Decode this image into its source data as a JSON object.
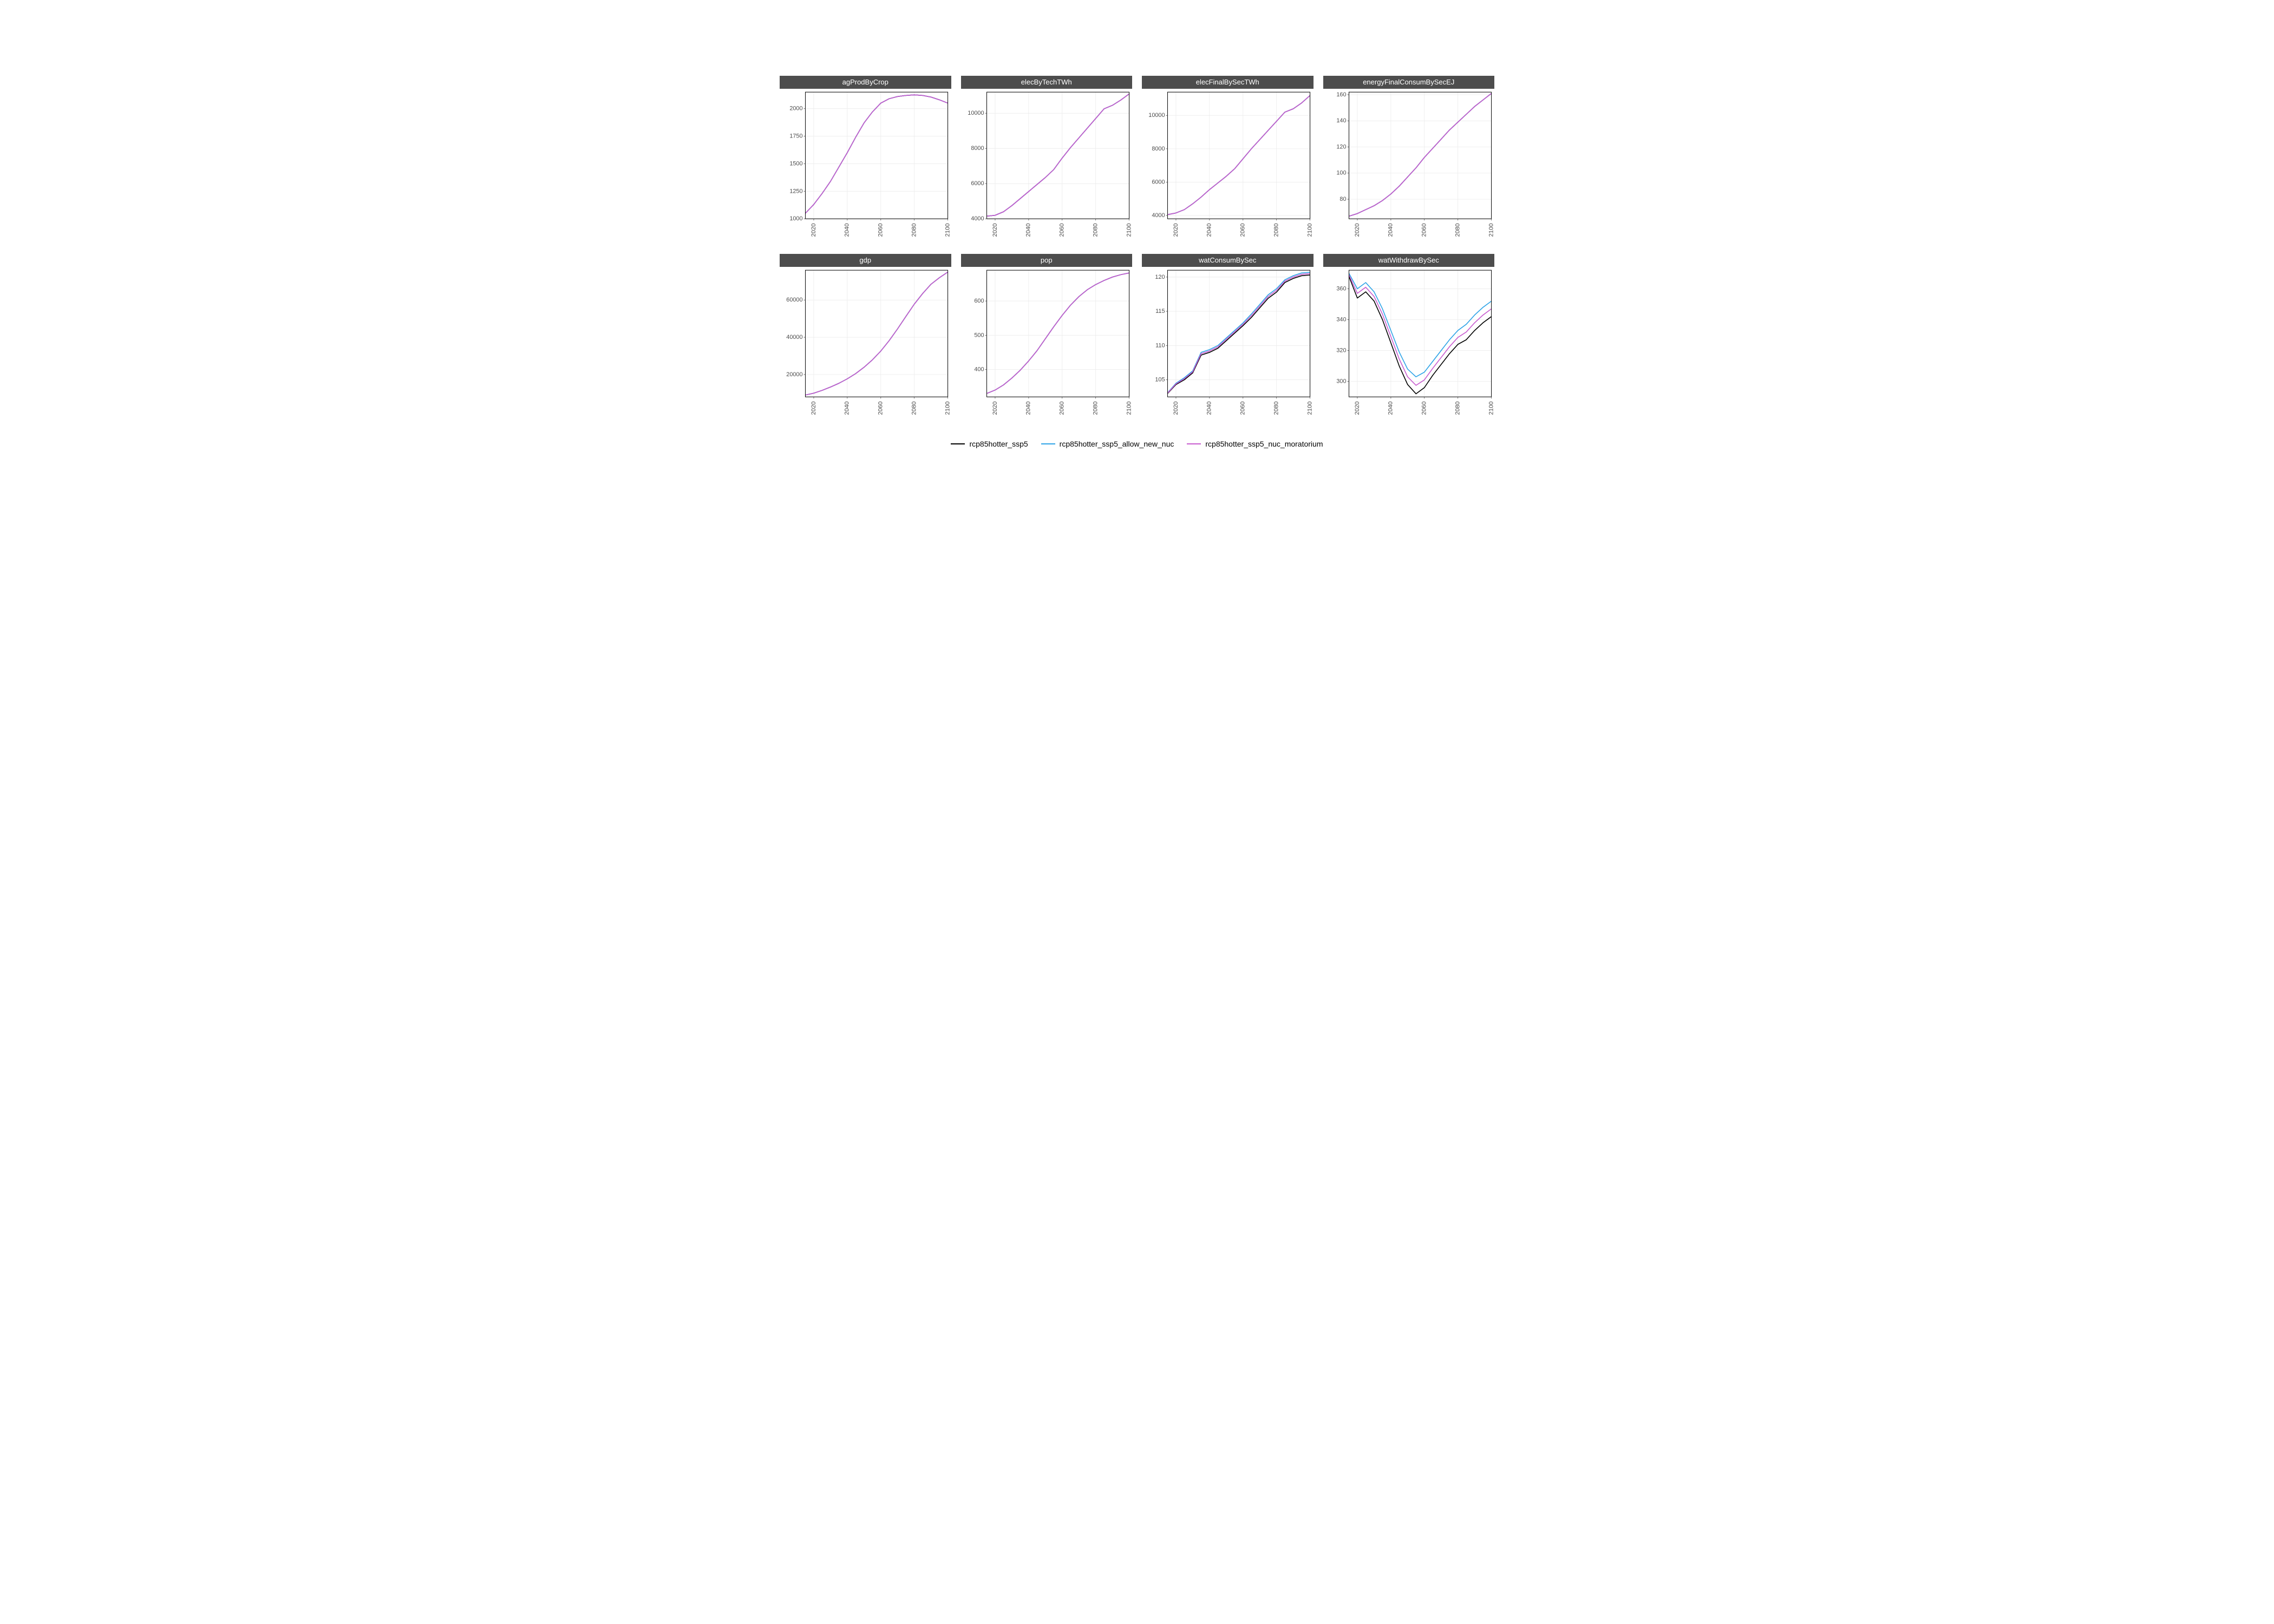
{
  "layout": {
    "rows": 2,
    "cols": 4,
    "background_color": "#ffffff",
    "panel_background": "#ffffff",
    "strip_background": "#4d4d4d",
    "strip_text_color": "#ffffff",
    "strip_fontsize": 13,
    "axis_text_color": "#4d4d4d",
    "axis_text_fontsize": 11,
    "gridline_color": "#ebebeb",
    "panel_border_color": "#000000",
    "x_tick_label_rotation": 90
  },
  "x_axis": {
    "lim": [
      2015,
      2100
    ],
    "ticks": [
      2020,
      2040,
      2060,
      2080,
      2100
    ]
  },
  "series_styles": {
    "rcp85hotter_ssp5": {
      "color": "#000000",
      "line_width": 1.6
    },
    "rcp85hotter_ssp5_allow_new_nuc": {
      "color": "#2fa4e7",
      "line_width": 1.6
    },
    "rcp85hotter_ssp5_nuc_moratorium": {
      "color": "#c85ccf",
      "line_width": 1.6
    }
  },
  "legend": {
    "items": [
      {
        "key": "rcp85hotter_ssp5",
        "label": "rcp85hotter_ssp5"
      },
      {
        "key": "rcp85hotter_ssp5_allow_new_nuc",
        "label": "rcp85hotter_ssp5_allow_new_nuc"
      },
      {
        "key": "rcp85hotter_ssp5_nuc_moratorium",
        "label": "rcp85hotter_ssp5_nuc_moratorium"
      }
    ],
    "fontsize": 14,
    "swatch_width": 26
  },
  "x_values": [
    2015,
    2020,
    2025,
    2030,
    2035,
    2040,
    2045,
    2050,
    2055,
    2060,
    2065,
    2070,
    2075,
    2080,
    2085,
    2090,
    2095,
    2100
  ],
  "panels": [
    {
      "title": "agProdByCrop",
      "y_lim": [
        1000,
        2150
      ],
      "y_ticks": [
        1000,
        1250,
        1500,
        1750,
        2000
      ],
      "series": {
        "rcp85hotter_ssp5": [
          1050,
          1130,
          1230,
          1340,
          1470,
          1600,
          1740,
          1870,
          1970,
          2050,
          2090,
          2110,
          2120,
          2125,
          2120,
          2105,
          2080,
          2050
        ],
        "rcp85hotter_ssp5_allow_new_nuc": [
          1050,
          1130,
          1230,
          1340,
          1470,
          1600,
          1740,
          1870,
          1970,
          2050,
          2090,
          2110,
          2120,
          2125,
          2120,
          2105,
          2080,
          2050
        ],
        "rcp85hotter_ssp5_nuc_moratorium": [
          1050,
          1130,
          1230,
          1340,
          1470,
          1600,
          1740,
          1870,
          1970,
          2050,
          2090,
          2110,
          2120,
          2125,
          2120,
          2105,
          2080,
          2050
        ]
      }
    },
    {
      "title": "elecByTechTWh",
      "y_lim": [
        4000,
        11200
      ],
      "y_ticks": [
        4000,
        6000,
        8000,
        10000
      ],
      "series": {
        "rcp85hotter_ssp5": [
          4150,
          4200,
          4400,
          4750,
          5150,
          5550,
          5950,
          6350,
          6800,
          7450,
          8050,
          8600,
          9150,
          9700,
          10250,
          10450,
          10750,
          11100
        ],
        "rcp85hotter_ssp5_allow_new_nuc": [
          4150,
          4200,
          4400,
          4750,
          5150,
          5550,
          5950,
          6350,
          6800,
          7450,
          8050,
          8600,
          9150,
          9700,
          10250,
          10450,
          10750,
          11100
        ],
        "rcp85hotter_ssp5_nuc_moratorium": [
          4150,
          4200,
          4400,
          4750,
          5150,
          5550,
          5950,
          6350,
          6800,
          7450,
          8050,
          8600,
          9150,
          9700,
          10250,
          10450,
          10750,
          11100
        ]
      }
    },
    {
      "title": "elecFinalBySecTWh",
      "y_lim": [
        3800,
        11400
      ],
      "y_ticks": [
        4000,
        6000,
        8000,
        10000
      ],
      "series": {
        "rcp85hotter_ssp5": [
          4050,
          4150,
          4350,
          4700,
          5100,
          5550,
          5950,
          6350,
          6800,
          7400,
          8000,
          8550,
          9100,
          9650,
          10200,
          10400,
          10750,
          11200
        ],
        "rcp85hotter_ssp5_allow_new_nuc": [
          4050,
          4150,
          4350,
          4700,
          5100,
          5550,
          5950,
          6350,
          6800,
          7400,
          8000,
          8550,
          9100,
          9650,
          10200,
          10400,
          10750,
          11200
        ],
        "rcp85hotter_ssp5_nuc_moratorium": [
          4050,
          4150,
          4350,
          4700,
          5100,
          5550,
          5950,
          6350,
          6800,
          7400,
          8000,
          8550,
          9100,
          9650,
          10200,
          10400,
          10750,
          11200
        ]
      }
    },
    {
      "title": "energyFinalConsumBySecEJ",
      "y_lim": [
        65,
        162
      ],
      "y_ticks": [
        80,
        100,
        120,
        140,
        160
      ],
      "series": {
        "rcp85hotter_ssp5": [
          67,
          69,
          72,
          75,
          79,
          84,
          90,
          97,
          104,
          112,
          119,
          126,
          133,
          139,
          145,
          151,
          156,
          161
        ],
        "rcp85hotter_ssp5_allow_new_nuc": [
          67,
          69,
          72,
          75,
          79,
          84,
          90,
          97,
          104,
          112,
          119,
          126,
          133,
          139,
          145,
          151,
          156,
          161
        ],
        "rcp85hotter_ssp5_nuc_moratorium": [
          67,
          69,
          72,
          75,
          79,
          84,
          90,
          97,
          104,
          112,
          119,
          126,
          133,
          139,
          145,
          151,
          156,
          161
        ]
      }
    },
    {
      "title": "gdp",
      "y_lim": [
        8000,
        76000
      ],
      "y_ticks": [
        20000,
        40000,
        60000
      ],
      "series": {
        "rcp85hotter_ssp5": [
          9000,
          10000,
          11500,
          13300,
          15300,
          17700,
          20500,
          23900,
          27900,
          32600,
          38200,
          44500,
          51200,
          57800,
          63500,
          68500,
          72000,
          75000
        ],
        "rcp85hotter_ssp5_allow_new_nuc": [
          9000,
          10000,
          11500,
          13300,
          15300,
          17700,
          20500,
          23900,
          27900,
          32600,
          38200,
          44500,
          51200,
          57800,
          63500,
          68500,
          72000,
          75000
        ],
        "rcp85hotter_ssp5_nuc_moratorium": [
          9000,
          10000,
          11500,
          13300,
          15300,
          17700,
          20500,
          23900,
          27900,
          32600,
          38200,
          44500,
          51200,
          57800,
          63500,
          68500,
          72000,
          75000
        ]
      }
    },
    {
      "title": "pop",
      "y_lim": [
        320,
        690
      ],
      "y_ticks": [
        400,
        500,
        600
      ],
      "series": {
        "rcp85hotter_ssp5": [
          330,
          340,
          355,
          375,
          398,
          425,
          455,
          490,
          525,
          558,
          588,
          613,
          633,
          648,
          660,
          670,
          677,
          682
        ],
        "rcp85hotter_ssp5_allow_new_nuc": [
          330,
          340,
          355,
          375,
          398,
          425,
          455,
          490,
          525,
          558,
          588,
          613,
          633,
          648,
          660,
          670,
          677,
          682
        ],
        "rcp85hotter_ssp5_nuc_moratorium": [
          330,
          340,
          355,
          375,
          398,
          425,
          455,
          490,
          525,
          558,
          588,
          613,
          633,
          648,
          660,
          670,
          677,
          682
        ]
      }
    },
    {
      "title": "watConsumBySec",
      "y_lim": [
        102.5,
        121
      ],
      "y_ticks": [
        105,
        110,
        115,
        120
      ],
      "series": {
        "rcp85hotter_ssp5": [
          103.0,
          104.3,
          105.0,
          106.0,
          108.6,
          109.0,
          109.6,
          110.7,
          111.8,
          112.9,
          114.1,
          115.5,
          116.9,
          117.8,
          119.2,
          119.8,
          120.2,
          120.3
        ],
        "rcp85hotter_ssp5_allow_new_nuc": [
          103.1,
          104.5,
          105.3,
          106.3,
          109.0,
          109.4,
          110.0,
          111.1,
          112.2,
          113.3,
          114.6,
          116.0,
          117.4,
          118.3,
          119.6,
          120.2,
          120.6,
          120.7
        ],
        "rcp85hotter_ssp5_nuc_moratorium": [
          103.05,
          104.4,
          105.15,
          106.15,
          108.8,
          109.2,
          109.8,
          110.9,
          112.0,
          113.1,
          114.35,
          115.75,
          117.15,
          118.05,
          119.4,
          120.0,
          120.4,
          120.5
        ]
      }
    },
    {
      "title": "watWithdrawBySec",
      "y_lim": [
        290,
        372
      ],
      "y_ticks": [
        300,
        320,
        340,
        360
      ],
      "series": {
        "rcp85hotter_ssp5": [
          368,
          354,
          358,
          352,
          340,
          325,
          310,
          298,
          292,
          296,
          304,
          311,
          318,
          324,
          327,
          333,
          338,
          342
        ],
        "rcp85hotter_ssp5_allow_new_nuc": [
          370,
          360,
          364,
          358,
          347,
          333,
          319,
          308,
          303,
          306,
          313,
          320,
          327,
          333,
          337,
          343,
          348,
          352
        ],
        "rcp85hotter_ssp5_nuc_moratorium": [
          369,
          357,
          361,
          355,
          343.5,
          329,
          314.5,
          303,
          297.5,
          301,
          308.5,
          315.5,
          322.5,
          328.5,
          332,
          338,
          343,
          347
        ]
      }
    }
  ]
}
